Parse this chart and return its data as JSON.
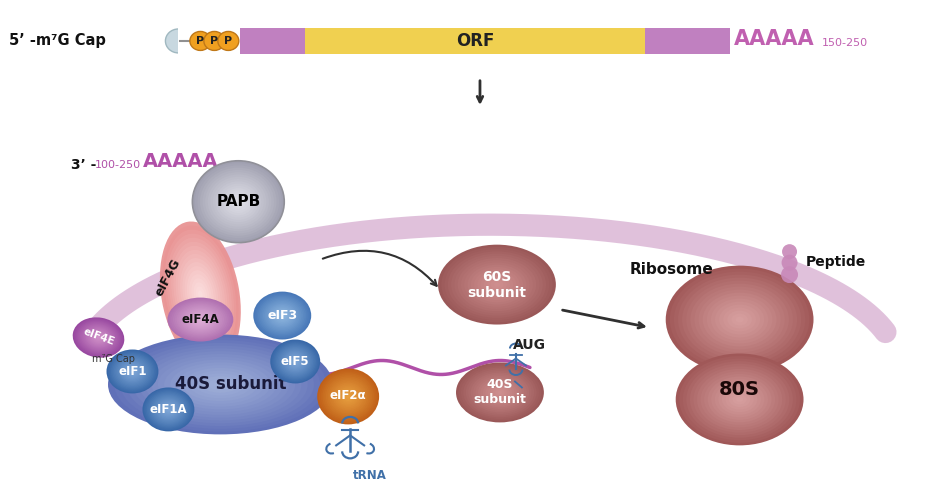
{
  "bg_color": "#ffffff",
  "mrna_bar": {
    "cap_color": "#c8d8e0",
    "phosphate_color": "#f0a020",
    "utr5_color": "#c080c0",
    "orf_color": "#f0d050",
    "utr3_color": "#c080c0",
    "poly_a_color": "#c060b0",
    "label_5prime": "5’ -m⁷G Cap",
    "label_orf": "ORF",
    "label_polyA_top": "AAAAA",
    "label_150_250": "150-250"
  },
  "circular_arc_color": "#ddbbd8",
  "arrow_color": "#303030",
  "mrna_wave_color": "#b050a8",
  "poly_a_bottom": "AAAAA",
  "label_3prime": "3’ -",
  "label_100_250": "100-250",
  "papb_color": "#c8c8d0",
  "papb_label": "PAPB",
  "eif4g_color": "#f0b0b8",
  "eif4g_label": "eIF4G",
  "eif4e_color": "#b060a8",
  "eif4e_label": "eIF4E",
  "m7g_label": "m⁷G Cap",
  "eif4a_color": "#c890c0",
  "eif4a_label": "eIF4A",
  "eif3_color": "#6090c8",
  "eif3_label": "eIF3",
  "subunit40s_color": "#8090c8",
  "subunit40s_label": "40S subunit",
  "eif1_color": "#4878b8",
  "eif1_label": "eIF1",
  "eif1a_color": "#4878b8",
  "eif1a_label": "eIF1A",
  "eif5_color": "#4878b8",
  "eif5_label": "eIF5",
  "eif2a_color": "#d07828",
  "eif2a_label": "eIF2α",
  "trna_color": "#4070a8",
  "trna_label": "tRNA",
  "subunit60s_color": "#b87070",
  "subunit60s_label": "60S\nsubunit",
  "subunit40s_small_color": "#b87070",
  "subunit40s_small_label": "40S\nsubunit",
  "aug_label": "AUG",
  "ribosome_top_color": "#c07878",
  "ribosome_bottom_color": "#c07878",
  "ribosome_80s_label": "80S",
  "ribosome_label": "Ribosome",
  "peptide_color": "#c888b8",
  "peptide_label": "Peptide"
}
